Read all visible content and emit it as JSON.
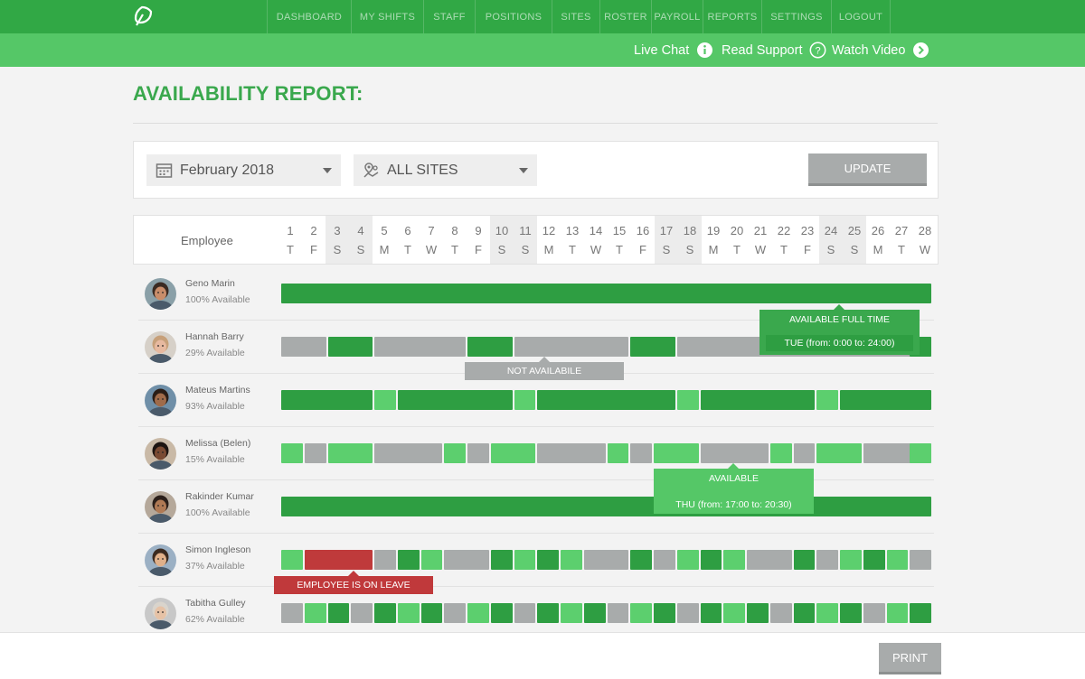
{
  "nav": {
    "items": [
      "DASHBOARD",
      "MY SHIFTS",
      "STAFF",
      "POSITIONS",
      "SITES",
      "ROSTER",
      "PAYROLL",
      "REPORTS",
      "SETTINGS",
      "LOGOUT"
    ],
    "logo_icon": "leaf-logo-icon"
  },
  "help": {
    "live_chat": "Live Chat",
    "read_support": "Read Support",
    "watch_video": "Watch Video",
    "live_chat_icon": "info-icon",
    "read_support_icon": "question-icon",
    "watch_video_icon": "play-arrow-icon"
  },
  "page": {
    "title": "AVAILABILITY REPORT:"
  },
  "filters": {
    "month": "February 2018",
    "month_icon": "calendar-icon",
    "site": "ALL SITES",
    "site_icon": "map-pin-icon",
    "update_label": "UPDATE"
  },
  "grid": {
    "employee_header": "Employee",
    "days": [
      {
        "n": "1",
        "l": "T"
      },
      {
        "n": "2",
        "l": "F"
      },
      {
        "n": "3",
        "l": "S"
      },
      {
        "n": "4",
        "l": "S"
      },
      {
        "n": "5",
        "l": "M"
      },
      {
        "n": "6",
        "l": "T"
      },
      {
        "n": "7",
        "l": "W"
      },
      {
        "n": "8",
        "l": "T"
      },
      {
        "n": "9",
        "l": "F"
      },
      {
        "n": "10",
        "l": "S"
      },
      {
        "n": "11",
        "l": "S"
      },
      {
        "n": "12",
        "l": "M"
      },
      {
        "n": "13",
        "l": "T"
      },
      {
        "n": "14",
        "l": "W"
      },
      {
        "n": "15",
        "l": "T"
      },
      {
        "n": "16",
        "l": "F"
      },
      {
        "n": "17",
        "l": "S"
      },
      {
        "n": "18",
        "l": "S"
      },
      {
        "n": "19",
        "l": "M"
      },
      {
        "n": "20",
        "l": "T"
      },
      {
        "n": "21",
        "l": "W"
      },
      {
        "n": "22",
        "l": "T"
      },
      {
        "n": "23",
        "l": "F"
      },
      {
        "n": "24",
        "l": "S"
      },
      {
        "n": "25",
        "l": "S"
      },
      {
        "n": "26",
        "l": "M"
      },
      {
        "n": "27",
        "l": "T"
      },
      {
        "n": "28",
        "l": "W"
      }
    ]
  },
  "colors": {
    "dark": "#2e9e42",
    "light": "#5ccf6e",
    "grey": "#a8abab",
    "red": "#bf3a3b"
  },
  "employees": [
    {
      "name": "Geno Marin",
      "availability": "100% Available",
      "segments": [
        {
          "from": 1,
          "to": 28,
          "status": "dark"
        }
      ]
    },
    {
      "name": "Hannah Barry",
      "availability": "29% Available",
      "segments": [
        {
          "from": 1,
          "to": 2,
          "status": "grey"
        },
        {
          "from": 3,
          "to": 4,
          "status": "dark"
        },
        {
          "from": 5,
          "to": 8,
          "status": "grey"
        },
        {
          "from": 9,
          "to": 10,
          "status": "dark"
        },
        {
          "from": 11,
          "to": 15,
          "status": "grey"
        },
        {
          "from": 16,
          "to": 17,
          "status": "dark"
        },
        {
          "from": 18,
          "to": 28,
          "status": "grey"
        },
        {
          "from": 28,
          "to": 28,
          "status": "dark"
        }
      ]
    },
    {
      "name": "Mateus Martins",
      "availability": "93% Available",
      "segments": [
        {
          "from": 1,
          "to": 4,
          "status": "dark"
        },
        {
          "from": 5,
          "to": 5,
          "status": "light"
        },
        {
          "from": 6,
          "to": 10,
          "status": "dark"
        },
        {
          "from": 11,
          "to": 11,
          "status": "light"
        },
        {
          "from": 12,
          "to": 17,
          "status": "dark"
        },
        {
          "from": 18,
          "to": 18,
          "status": "light"
        },
        {
          "from": 19,
          "to": 23,
          "status": "dark"
        },
        {
          "from": 24,
          "to": 24,
          "status": "light"
        },
        {
          "from": 25,
          "to": 28,
          "status": "dark"
        }
      ]
    },
    {
      "name": "Melissa (Belen)",
      "availability": "15% Available",
      "segments": [
        {
          "from": 1,
          "to": 1,
          "status": "light"
        },
        {
          "from": 2,
          "to": 2,
          "status": "grey"
        },
        {
          "from": 3,
          "to": 4,
          "status": "light"
        },
        {
          "from": 5,
          "to": 7,
          "status": "grey"
        },
        {
          "from": 8,
          "to": 8,
          "status": "light"
        },
        {
          "from": 9,
          "to": 9,
          "status": "grey"
        },
        {
          "from": 10,
          "to": 11,
          "status": "light"
        },
        {
          "from": 12,
          "to": 14,
          "status": "grey"
        },
        {
          "from": 15,
          "to": 15,
          "status": "light"
        },
        {
          "from": 16,
          "to": 16,
          "status": "grey"
        },
        {
          "from": 17,
          "to": 18,
          "status": "light"
        },
        {
          "from": 19,
          "to": 21,
          "status": "grey"
        },
        {
          "from": 22,
          "to": 22,
          "status": "light"
        },
        {
          "from": 23,
          "to": 23,
          "status": "grey"
        },
        {
          "from": 24,
          "to": 25,
          "status": "light"
        },
        {
          "from": 26,
          "to": 28,
          "status": "grey"
        },
        {
          "from": 28,
          "to": 28,
          "status": "light"
        }
      ]
    },
    {
      "name": "Rakinder Kumar",
      "availability": "100% Available",
      "segments": [
        {
          "from": 1,
          "to": 28,
          "status": "dark"
        }
      ]
    },
    {
      "name": "Simon Ingleson",
      "availability": "37% Available",
      "segments": [
        {
          "from": 1,
          "to": 1,
          "status": "light"
        },
        {
          "from": 2,
          "to": 4,
          "status": "red"
        },
        {
          "from": 5,
          "to": 5,
          "status": "grey"
        },
        {
          "from": 6,
          "to": 6,
          "status": "dark"
        },
        {
          "from": 7,
          "to": 7,
          "status": "light"
        },
        {
          "from": 8,
          "to": 9,
          "status": "grey"
        },
        {
          "from": 10,
          "to": 10,
          "status": "dark"
        },
        {
          "from": 11,
          "to": 11,
          "status": "light"
        },
        {
          "from": 12,
          "to": 12,
          "status": "dark"
        },
        {
          "from": 13,
          "to": 13,
          "status": "light"
        },
        {
          "from": 14,
          "to": 15,
          "status": "grey"
        },
        {
          "from": 16,
          "to": 16,
          "status": "dark"
        },
        {
          "from": 17,
          "to": 17,
          "status": "grey"
        },
        {
          "from": 18,
          "to": 18,
          "status": "light"
        },
        {
          "from": 19,
          "to": 19,
          "status": "dark"
        },
        {
          "from": 20,
          "to": 20,
          "status": "light"
        },
        {
          "from": 21,
          "to": 22,
          "status": "grey"
        },
        {
          "from": 23,
          "to": 23,
          "status": "dark"
        },
        {
          "from": 24,
          "to": 24,
          "status": "grey"
        },
        {
          "from": 25,
          "to": 25,
          "status": "light"
        },
        {
          "from": 26,
          "to": 26,
          "status": "dark"
        },
        {
          "from": 27,
          "to": 27,
          "status": "light"
        },
        {
          "from": 28,
          "to": 28,
          "status": "grey"
        }
      ]
    },
    {
      "name": "Tabitha Gulley",
      "availability": "62% Available",
      "segments": [
        {
          "from": 1,
          "to": 1,
          "status": "grey"
        },
        {
          "from": 2,
          "to": 2,
          "status": "light"
        },
        {
          "from": 3,
          "to": 3,
          "status": "dark"
        },
        {
          "from": 4,
          "to": 4,
          "status": "grey"
        },
        {
          "from": 5,
          "to": 5,
          "status": "dark"
        },
        {
          "from": 6,
          "to": 6,
          "status": "light"
        },
        {
          "from": 7,
          "to": 7,
          "status": "dark"
        },
        {
          "from": 8,
          "to": 8,
          "status": "grey"
        },
        {
          "from": 9,
          "to": 9,
          "status": "light"
        },
        {
          "from": 10,
          "to": 10,
          "status": "dark"
        },
        {
          "from": 11,
          "to": 11,
          "status": "grey"
        },
        {
          "from": 12,
          "to": 12,
          "status": "dark"
        },
        {
          "from": 13,
          "to": 13,
          "status": "light"
        },
        {
          "from": 14,
          "to": 14,
          "status": "dark"
        },
        {
          "from": 15,
          "to": 15,
          "status": "grey"
        },
        {
          "from": 16,
          "to": 16,
          "status": "light"
        },
        {
          "from": 17,
          "to": 17,
          "status": "dark"
        },
        {
          "from": 18,
          "to": 18,
          "status": "grey"
        },
        {
          "from": 19,
          "to": 19,
          "status": "dark"
        },
        {
          "from": 20,
          "to": 20,
          "status": "light"
        },
        {
          "from": 21,
          "to": 21,
          "status": "dark"
        },
        {
          "from": 22,
          "to": 22,
          "status": "grey"
        },
        {
          "from": 23,
          "to": 23,
          "status": "dark"
        },
        {
          "from": 24,
          "to": 24,
          "status": "light"
        },
        {
          "from": 25,
          "to": 25,
          "status": "dark"
        },
        {
          "from": 26,
          "to": 26,
          "status": "grey"
        },
        {
          "from": 27,
          "to": 27,
          "status": "light"
        },
        {
          "from": 28,
          "to": 28,
          "status": "dark"
        }
      ]
    }
  ],
  "tooltips": {
    "full_time_title": "AVAILABLE FULL TIME",
    "full_time_detail": "TUE (from: 0:00 to: 24:00)",
    "not_available": "NOT AVAILABILE",
    "available_title": "AVAILABLE",
    "available_detail": "THU (from: 17:00 to: 20:30)",
    "on_leave": "EMPLOYEE IS ON LEAVE"
  },
  "footer": {
    "print_label": "PRINT"
  }
}
